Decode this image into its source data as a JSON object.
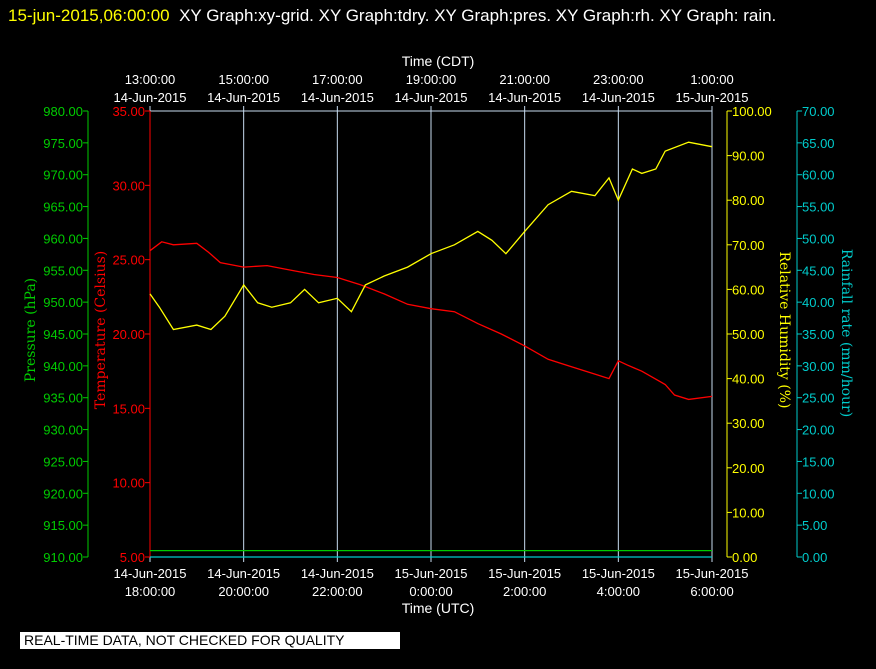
{
  "header": {
    "timestamp": "15-jun-2015,06:00:00",
    "graphs": "XY Graph:xy-grid.  XY Graph:tdry.  XY Graph:pres.  XY Graph:rh.  XY Graph: rain."
  },
  "quality_notice": "REAL-TIME DATA, NOT CHECKED FOR QUALITY",
  "colors": {
    "background": "#000000",
    "temperature": "#ff0000",
    "pressure": "#00cc00",
    "humidity": "#ffff00",
    "rain": "#00cccc",
    "grid": "#c8dcf0",
    "axis_text": "#ffffff"
  },
  "chart_data": {
    "type": "line",
    "time_axis_top": {
      "label": "Time (CDT)",
      "ticks": [
        {
          "time": "13:00:00",
          "date": "14-Jun-2015"
        },
        {
          "time": "15:00:00",
          "date": "14-Jun-2015"
        },
        {
          "time": "17:00:00",
          "date": "14-Jun-2015"
        },
        {
          "time": "19:00:00",
          "date": "14-Jun-2015"
        },
        {
          "time": "21:00:00",
          "date": "14-Jun-2015"
        },
        {
          "time": "23:00:00",
          "date": "14-Jun-2015"
        },
        {
          "time": "1:00:00",
          "date": "15-Jun-2015"
        }
      ]
    },
    "time_axis_bottom": {
      "label": "Time (UTC)",
      "ticks": [
        {
          "date": "14-Jun-2015",
          "time": "18:00:00"
        },
        {
          "date": "14-Jun-2015",
          "time": "20:00:00"
        },
        {
          "date": "14-Jun-2015",
          "time": "22:00:00"
        },
        {
          "date": "15-Jun-2015",
          "time": "0:00:00"
        },
        {
          "date": "15-Jun-2015",
          "time": "2:00:00"
        },
        {
          "date": "15-Jun-2015",
          "time": "4:00:00"
        },
        {
          "date": "15-Jun-2015",
          "time": "6:00:00"
        }
      ]
    },
    "x_range_utc_hours": [
      18,
      30
    ],
    "vertical_grid": true,
    "axes": {
      "pressure": {
        "label": "Pressure (hPa)",
        "range": [
          910,
          980
        ],
        "ticks": [
          "910.00",
          "915.00",
          "920.00",
          "925.00",
          "930.00",
          "935.00",
          "940.00",
          "945.00",
          "950.00",
          "955.00",
          "960.00",
          "965.00",
          "970.00",
          "975.00",
          "980.00"
        ]
      },
      "temperature": {
        "label": "Temperature (Celsius)",
        "range": [
          5,
          35
        ],
        "ticks": [
          "5.00",
          "10.00",
          "15.00",
          "20.00",
          "25.00",
          "30.00",
          "35.00"
        ]
      },
      "humidity": {
        "label": "Relative Humidity (%)",
        "range": [
          0,
          100
        ],
        "ticks": [
          "0.00",
          "10.00",
          "20.00",
          "30.00",
          "40.00",
          "50.00",
          "60.00",
          "70.00",
          "80.00",
          "90.00",
          "100.00"
        ]
      },
      "rain": {
        "label": "Rainfall rate (mm/hour)",
        "range": [
          0,
          70
        ],
        "ticks": [
          "0.00",
          "5.00",
          "10.00",
          "15.00",
          "20.00",
          "25.00",
          "30.00",
          "35.00",
          "40.00",
          "45.00",
          "50.00",
          "55.00",
          "60.00",
          "65.00",
          "70.00"
        ]
      }
    },
    "series": [
      {
        "axis": "temperature",
        "x": [
          18.0,
          18.25,
          18.5,
          19.0,
          19.25,
          19.5,
          20.0,
          20.5,
          21.0,
          21.5,
          22.0,
          22.5,
          23.0,
          23.5,
          24.0,
          24.5,
          25.0,
          25.5,
          26.0,
          26.5,
          26.8,
          27.0,
          27.5,
          27.8,
          28.0,
          28.2,
          28.5,
          29.0,
          29.2,
          29.5,
          30.0
        ],
        "values": [
          25.6,
          26.2,
          26.0,
          26.1,
          25.5,
          24.8,
          24.5,
          24.6,
          24.3,
          24.0,
          23.8,
          23.3,
          22.7,
          22.0,
          21.7,
          21.5,
          20.7,
          20.0,
          19.2,
          18.3,
          18.0,
          17.8,
          17.3,
          17.0,
          18.2,
          17.9,
          17.5,
          16.6,
          15.9,
          15.6,
          15.8
        ]
      },
      {
        "axis": "pressure",
        "x": [
          18.0,
          30.0
        ],
        "values": [
          911,
          911
        ]
      },
      {
        "axis": "humidity",
        "x": [
          18.0,
          18.2,
          18.5,
          19.0,
          19.3,
          19.6,
          20.0,
          20.3,
          20.6,
          21.0,
          21.3,
          21.6,
          22.0,
          22.3,
          22.6,
          23.0,
          23.5,
          24.0,
          24.5,
          25.0,
          25.3,
          25.6,
          26.0,
          26.5,
          27.0,
          27.5,
          27.8,
          28.0,
          28.3,
          28.5,
          28.8,
          29.0,
          29.5,
          30.0
        ],
        "values": [
          59,
          56,
          51,
          52,
          51,
          54,
          61,
          57,
          56,
          57,
          60,
          57,
          58,
          55,
          61,
          63,
          65,
          68,
          70,
          73,
          71,
          68,
          73,
          79,
          82,
          81,
          85,
          80,
          87,
          86,
          87,
          91,
          93,
          92
        ]
      },
      {
        "axis": "rain",
        "x": [
          18.0,
          30.0
        ],
        "values": [
          0,
          0
        ]
      }
    ]
  }
}
